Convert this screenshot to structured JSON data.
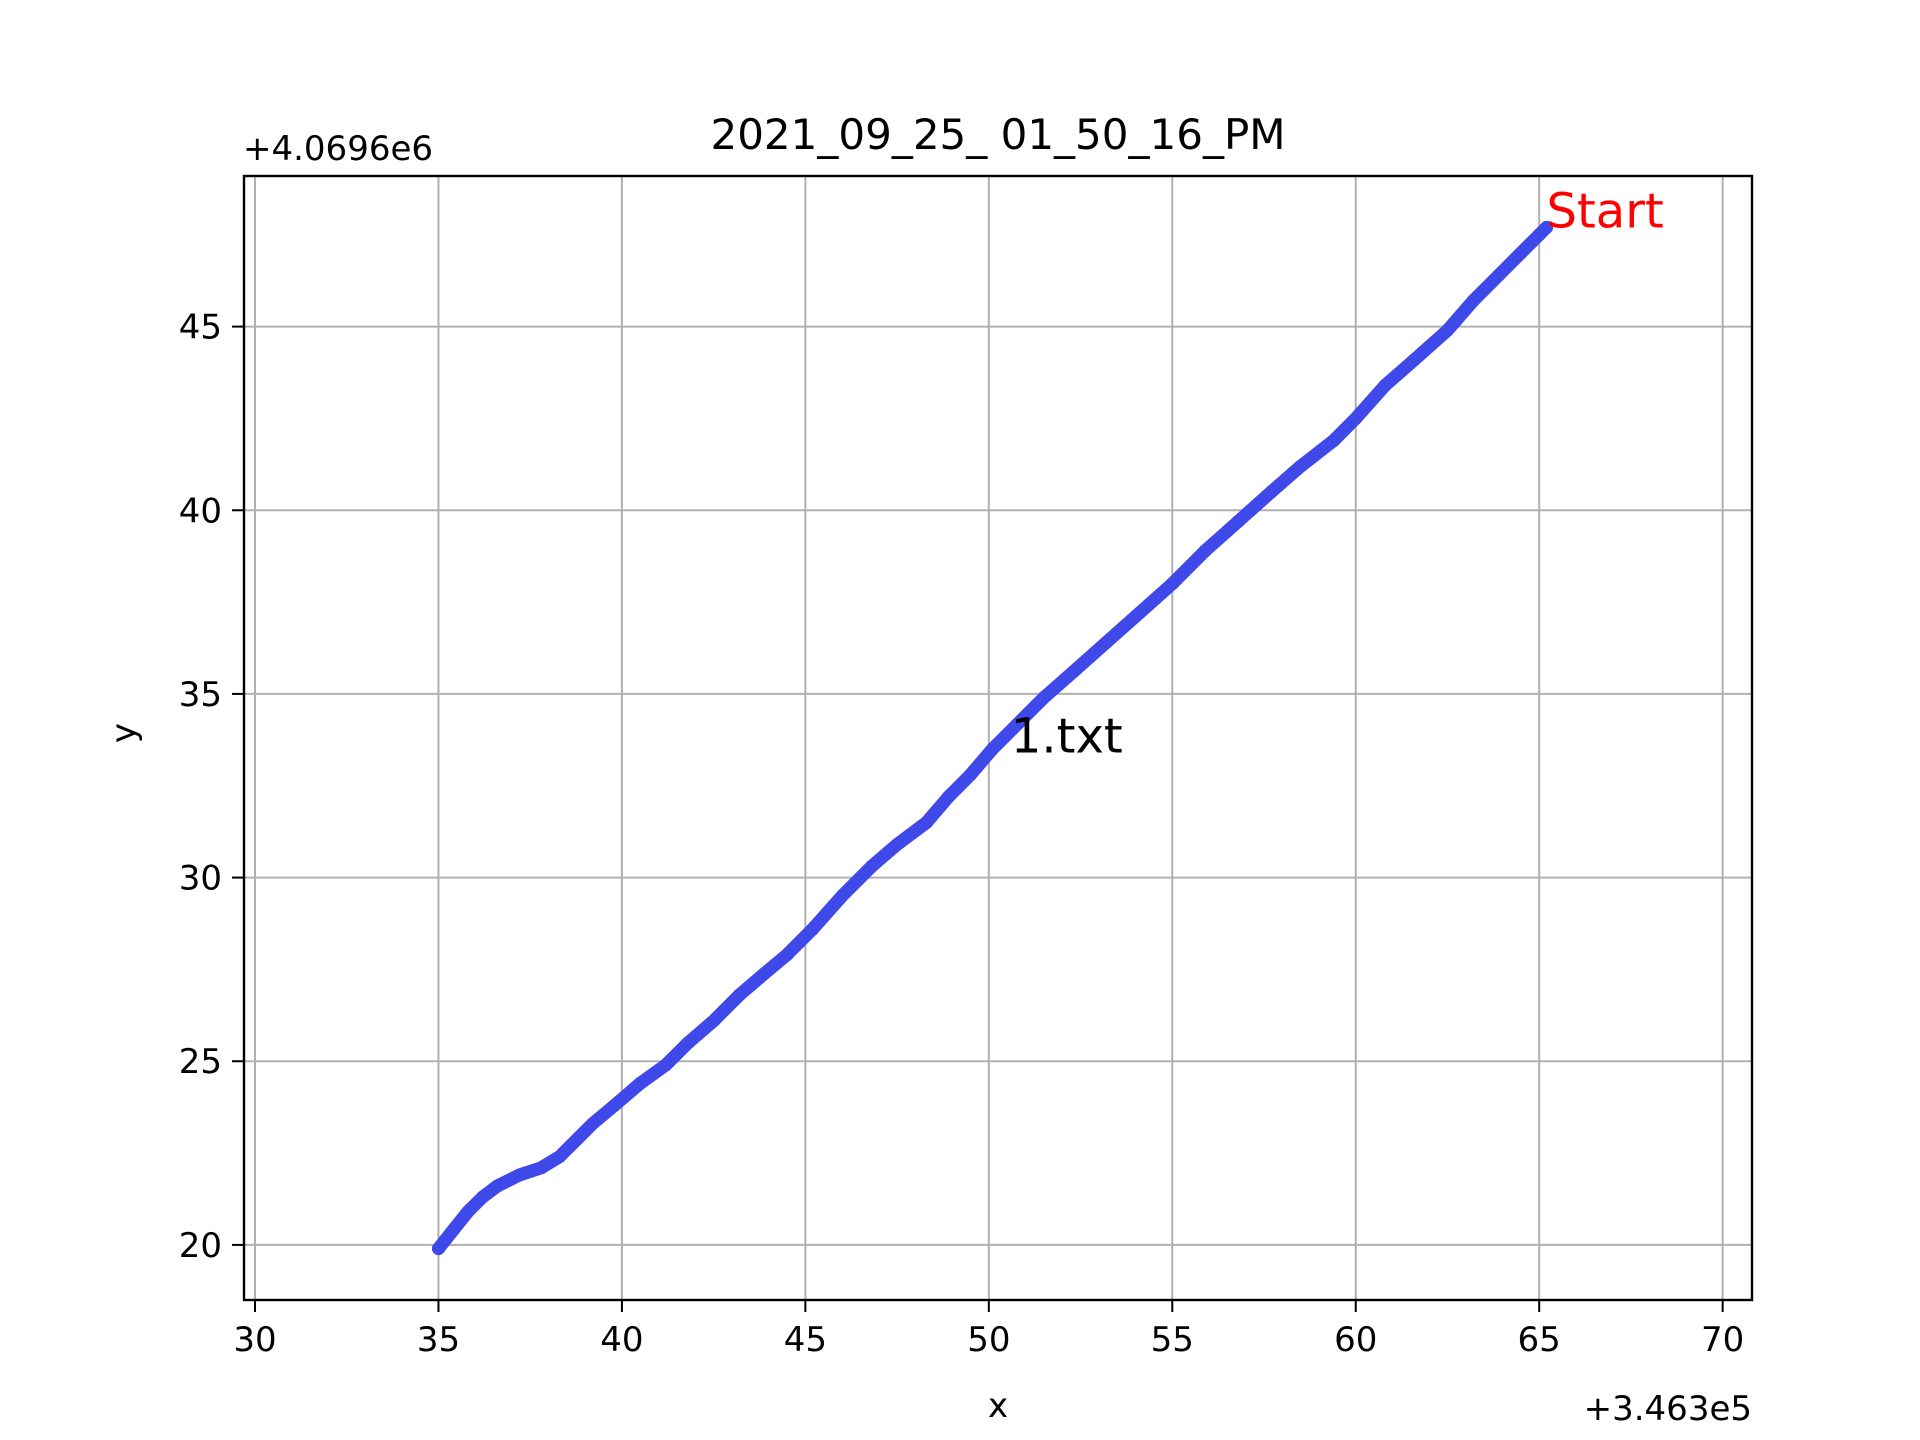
{
  "chart_data": {
    "type": "line",
    "title": "2021_09_25_ 01_50_16_PM",
    "xlabel": "x",
    "ylabel": "y",
    "x_offset_label": "+3.463e5",
    "y_offset_label": "+4.0696e6",
    "xlim": [
      29.7,
      70.8
    ],
    "ylim": [
      18.5,
      49.1
    ],
    "xticks": [
      30,
      35,
      40,
      45,
      50,
      55,
      60,
      65,
      70
    ],
    "yticks": [
      20,
      25,
      30,
      35,
      40,
      45
    ],
    "grid": true,
    "line_color": "#3f48e8",
    "series": [
      {
        "x": [
          35.0,
          35.4,
          35.8,
          36.2,
          36.6,
          37.2,
          37.8,
          38.3,
          38.8,
          39.2,
          39.8,
          40.5,
          41.2,
          41.8,
          42.5,
          43.2,
          43.9,
          44.5,
          45.2,
          46.0,
          46.8,
          47.5,
          48.3,
          48.9,
          49.5,
          50.1,
          50.8,
          51.5,
          52.3,
          53.2,
          54.1,
          55.0,
          55.9,
          56.8,
          57.7,
          58.5,
          59.4,
          60.0,
          60.8,
          61.6,
          62.5,
          63.2,
          63.9,
          64.5,
          65.0,
          65.2
        ],
        "y": [
          19.9,
          20.4,
          20.9,
          21.3,
          21.6,
          21.9,
          22.1,
          22.4,
          22.9,
          23.3,
          23.8,
          24.4,
          24.9,
          25.5,
          26.1,
          26.8,
          27.4,
          27.9,
          28.6,
          29.5,
          30.3,
          30.9,
          31.5,
          32.2,
          32.8,
          33.5,
          34.2,
          34.9,
          35.6,
          36.4,
          37.2,
          38.0,
          38.9,
          39.7,
          40.5,
          41.2,
          41.9,
          42.5,
          43.4,
          44.1,
          44.9,
          45.7,
          46.4,
          47.0,
          47.5,
          47.7
        ]
      }
    ],
    "annotations": [
      {
        "text": "Start",
        "x": 65.2,
        "y": 47.7,
        "color": "#ff0000"
      },
      {
        "text": "1.txt",
        "x": 50.6,
        "y": 33.4,
        "color": "#000000"
      }
    ]
  }
}
